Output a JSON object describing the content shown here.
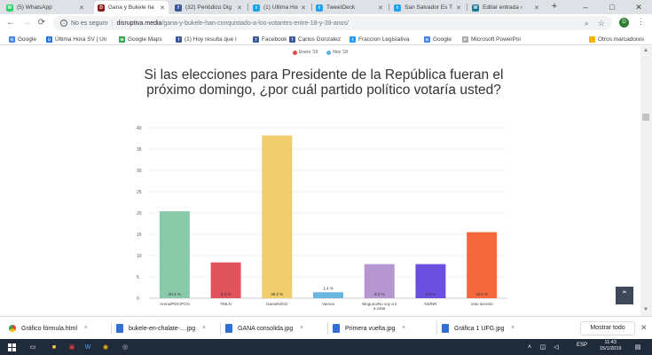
{
  "tabs": [
    {
      "title": "(5) WhatsApp",
      "color": "#25d366",
      "glyph": "W",
      "active": false
    },
    {
      "title": "Gana y Bukele ha",
      "color": "#8b1a1a",
      "glyph": "D",
      "active": true
    },
    {
      "title": "(32) Periódico Dig",
      "color": "#3b5998",
      "glyph": "f",
      "active": false
    },
    {
      "title": "(1) Última Hora (@",
      "color": "#1da1f2",
      "glyph": "t",
      "active": false
    },
    {
      "title": "TweetDeck",
      "color": "#1da1f2",
      "glyph": "t",
      "active": false
    },
    {
      "title": "San Salvador Es T",
      "color": "#1da1f2",
      "glyph": "t",
      "active": false
    },
    {
      "title": "Editar entrada ‹",
      "color": "#21759b",
      "glyph": "W",
      "active": false
    }
  ],
  "toolbar": {
    "insecure_label": "No es seguro",
    "host": "disruptiva.media",
    "path": "/gana-y-bukele-han-conquistado-a-los-votantes-entre-18-y-39-anos/",
    "profile_initial": "D"
  },
  "bookmarks": [
    {
      "label": "Google",
      "color": "#4285f4",
      "glyph": "G"
    },
    {
      "label": "Última Hora SV | Un",
      "color": "#1a73e8",
      "glyph": "Ú"
    },
    {
      "label": "Google Maps",
      "color": "#34a853",
      "glyph": "M"
    },
    {
      "label": "(1) Hoy resulta que l",
      "color": "#3b5998",
      "glyph": "f"
    },
    {
      "label": "Facebook",
      "color": "#3b5998",
      "glyph": "f"
    },
    {
      "label": "Carlos Gonzalez",
      "color": "#3b5998",
      "glyph": "f"
    },
    {
      "label": "Fraccion Legislativa",
      "color": "#1da1f2",
      "glyph": "t"
    },
    {
      "label": "Google",
      "color": "#4285f4",
      "glyph": "G"
    },
    {
      "label": "Microsoft PowerPoi",
      "color": "#aaaaaa",
      "glyph": "P"
    }
  ],
  "bookmarks_other": "Otros marcadores",
  "chart_data": {
    "type": "bar",
    "title": "Si las elecciones para Presidente de la República fueran el próximo domingo, ¿por cuál partido político votaría usted?",
    "legend": [
      {
        "name": "Enero '19",
        "color": "#e2474c"
      },
      {
        "name": "Nov '18",
        "color": "#5ab2e3"
      }
    ],
    "legend_position": "top",
    "categories": [
      "Arena/PDC/PCN",
      "FMLN",
      "Gana/NI/CD",
      "Vamos",
      "Ninguno/No voy a ir a votar",
      "NS/NR",
      "Voto secreto"
    ],
    "values": [
      20.4,
      8.4,
      38.2,
      1.4,
      8.0,
      8.0,
      15.5
    ],
    "value_labels": [
      "20.4 %",
      "8.4 %",
      "38.2 %",
      "1.4 %",
      "8.0 %",
      "8.0 %",
      "15.5 %"
    ],
    "colors": [
      "#89c9a9",
      "#e0535b",
      "#efcd6c",
      "#69b7e1",
      "#b596d0",
      "#6b50e0",
      "#f5683d"
    ],
    "yticks": [
      0,
      5,
      10,
      15,
      20,
      25,
      30,
      35,
      40
    ],
    "ylim": [
      0,
      40
    ],
    "grid": true
  },
  "downloads": [
    {
      "name": "Gráfico fórmula.html",
      "type": "chrome"
    },
    {
      "name": "bukele-en-chalate-....jpg",
      "type": "image"
    },
    {
      "name": "GANA consolida.jpg",
      "type": "image"
    },
    {
      "name": "Primera vuelta.jpg",
      "type": "image"
    },
    {
      "name": "Gráfica 1 UFG.jpg",
      "type": "image"
    }
  ],
  "downloads_show_all": "Mostrar todo",
  "taskbar": {
    "language": "ESP",
    "time": "11:43",
    "date": "15/1/2019"
  }
}
